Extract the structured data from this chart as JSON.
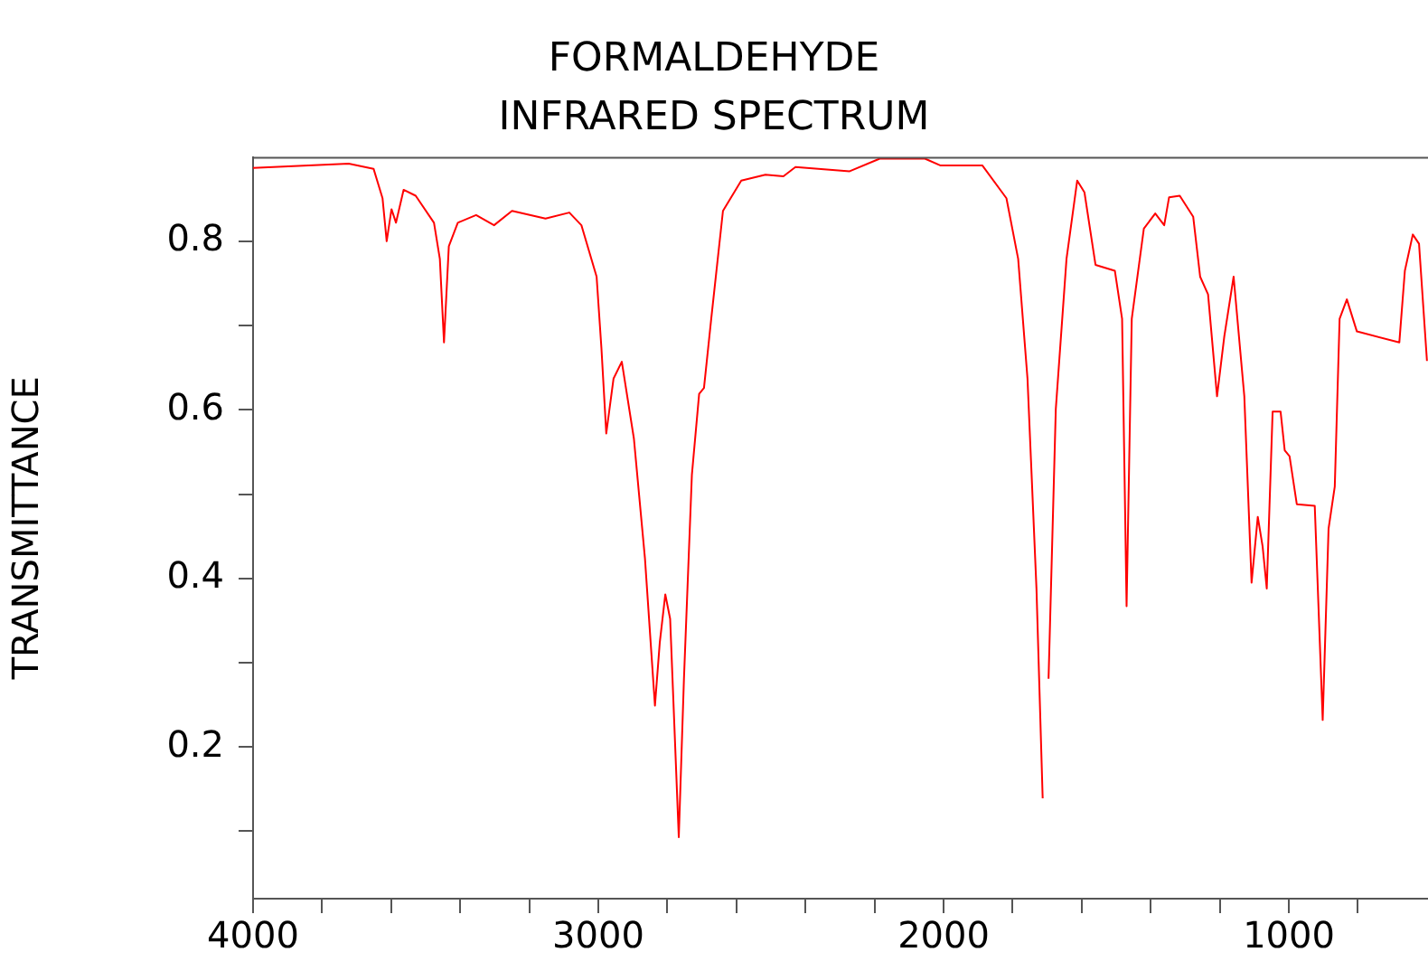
{
  "chart_data": {
    "type": "line",
    "title": "FORMALDEHYDE",
    "subtitle": "INFRARED SPECTRUM",
    "ylabel": "TRANSMITTANCE",
    "x": [
      4000,
      3723,
      3651,
      3625,
      3613,
      3599,
      3586,
      3564,
      3529,
      3476,
      3459,
      3447,
      3433,
      3407,
      3354,
      3302,
      3250,
      3153,
      3084,
      3049,
      3005,
      2991,
      2977,
      2956,
      2932,
      2897,
      2865,
      2836,
      2822,
      2806,
      2792,
      2767,
      2752,
      2729,
      2708,
      2694,
      2673,
      2639,
      2586,
      2516,
      2464,
      2429,
      2272,
      2185,
      2054,
      2010,
      1888,
      1818,
      1784,
      1757,
      1731,
      1713,
      1708,
      1696,
      1675,
      1644,
      1613,
      1592,
      1560,
      1504,
      1483,
      1470,
      1455,
      1420,
      1387,
      1361,
      1347,
      1316,
      1277,
      1257,
      1234,
      1208,
      1187,
      1160,
      1129,
      1108,
      1090,
      1076,
      1064,
      1047,
      1024,
      1012,
      998,
      977,
      925,
      902,
      885,
      867,
      853,
      832,
      803,
      680,
      664,
      641,
      623,
      600
    ],
    "series": [
      {
        "color": "#ff0000",
        "values": [
          0.887,
          0.892,
          0.886,
          0.851,
          0.8,
          0.838,
          0.822,
          0.861,
          0.854,
          0.822,
          0.779,
          0.68,
          0.794,
          0.822,
          0.831,
          0.819,
          0.836,
          0.827,
          0.834,
          0.819,
          0.758,
          0.673,
          0.572,
          0.637,
          0.657,
          0.566,
          0.424,
          0.249,
          0.324,
          0.381,
          0.352,
          0.093,
          0.281,
          0.523,
          0.619,
          0.626,
          0.708,
          0.836,
          0.872,
          0.879,
          0.877,
          0.888,
          0.883,
          0.898,
          0.898,
          0.89,
          0.89,
          0.851,
          0.779,
          0.637,
          0.388,
          0.139,
          null,
          0.281,
          0.601,
          0.779,
          0.872,
          0.858,
          0.772,
          0.765,
          0.708,
          0.367,
          0.708,
          0.815,
          0.833,
          0.819,
          0.852,
          0.854,
          0.829,
          0.758,
          0.737,
          0.616,
          0.687,
          0.758,
          0.616,
          0.395,
          0.473,
          0.438,
          0.388,
          0.598,
          0.598,
          0.552,
          0.545,
          0.488,
          0.486,
          0.232,
          0.459,
          0.509,
          0.708,
          0.731,
          0.693,
          0.68,
          0.765,
          0.808,
          0.797,
          0.658
        ]
      }
    ],
    "xlim": [
      4000,
      597
    ],
    "ylim": [
      0.02,
      0.9
    ],
    "xticks": [
      4000,
      {
        "value": 3800,
        "label": null
      },
      {
        "value": 3600,
        "label": null
      },
      {
        "value": 3400,
        "label": null
      },
      {
        "value": 3200,
        "label": null
      },
      3000,
      {
        "value": 2800,
        "label": null
      },
      {
        "value": 2600,
        "label": null
      },
      {
        "value": 2400,
        "label": null
      },
      {
        "value": 2200,
        "label": null
      },
      2000,
      {
        "value": 1800,
        "label": null
      },
      {
        "value": 1600,
        "label": null
      },
      {
        "value": 1400,
        "label": null
      },
      {
        "value": 1200,
        "label": null
      },
      1000,
      {
        "value": 800,
        "label": null
      }
    ],
    "yticks": [
      {
        "value": 0.1,
        "label": null
      },
      0.2,
      {
        "value": 0.3,
        "label": null
      },
      0.4,
      {
        "value": 0.5,
        "label": null
      },
      0.6,
      {
        "value": 0.7,
        "label": null
      },
      0.8
    ],
    "grid": false,
    "legend": false,
    "marker": "none",
    "line_style": "solid"
  }
}
